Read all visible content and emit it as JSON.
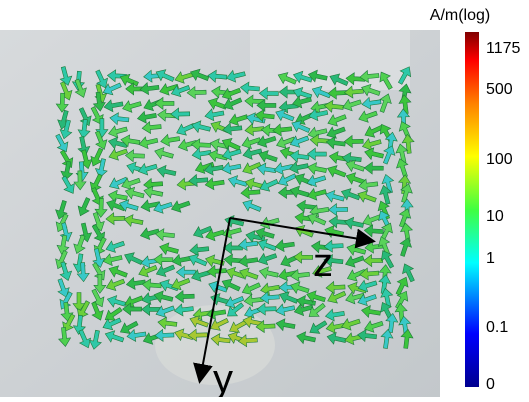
{
  "colorbar": {
    "title": "A/m(log)",
    "labels": [
      "1175",
      "500",
      "100",
      "10",
      "1",
      "0.1",
      "0"
    ]
  },
  "axes": {
    "z": "z",
    "y": "y"
  }
}
